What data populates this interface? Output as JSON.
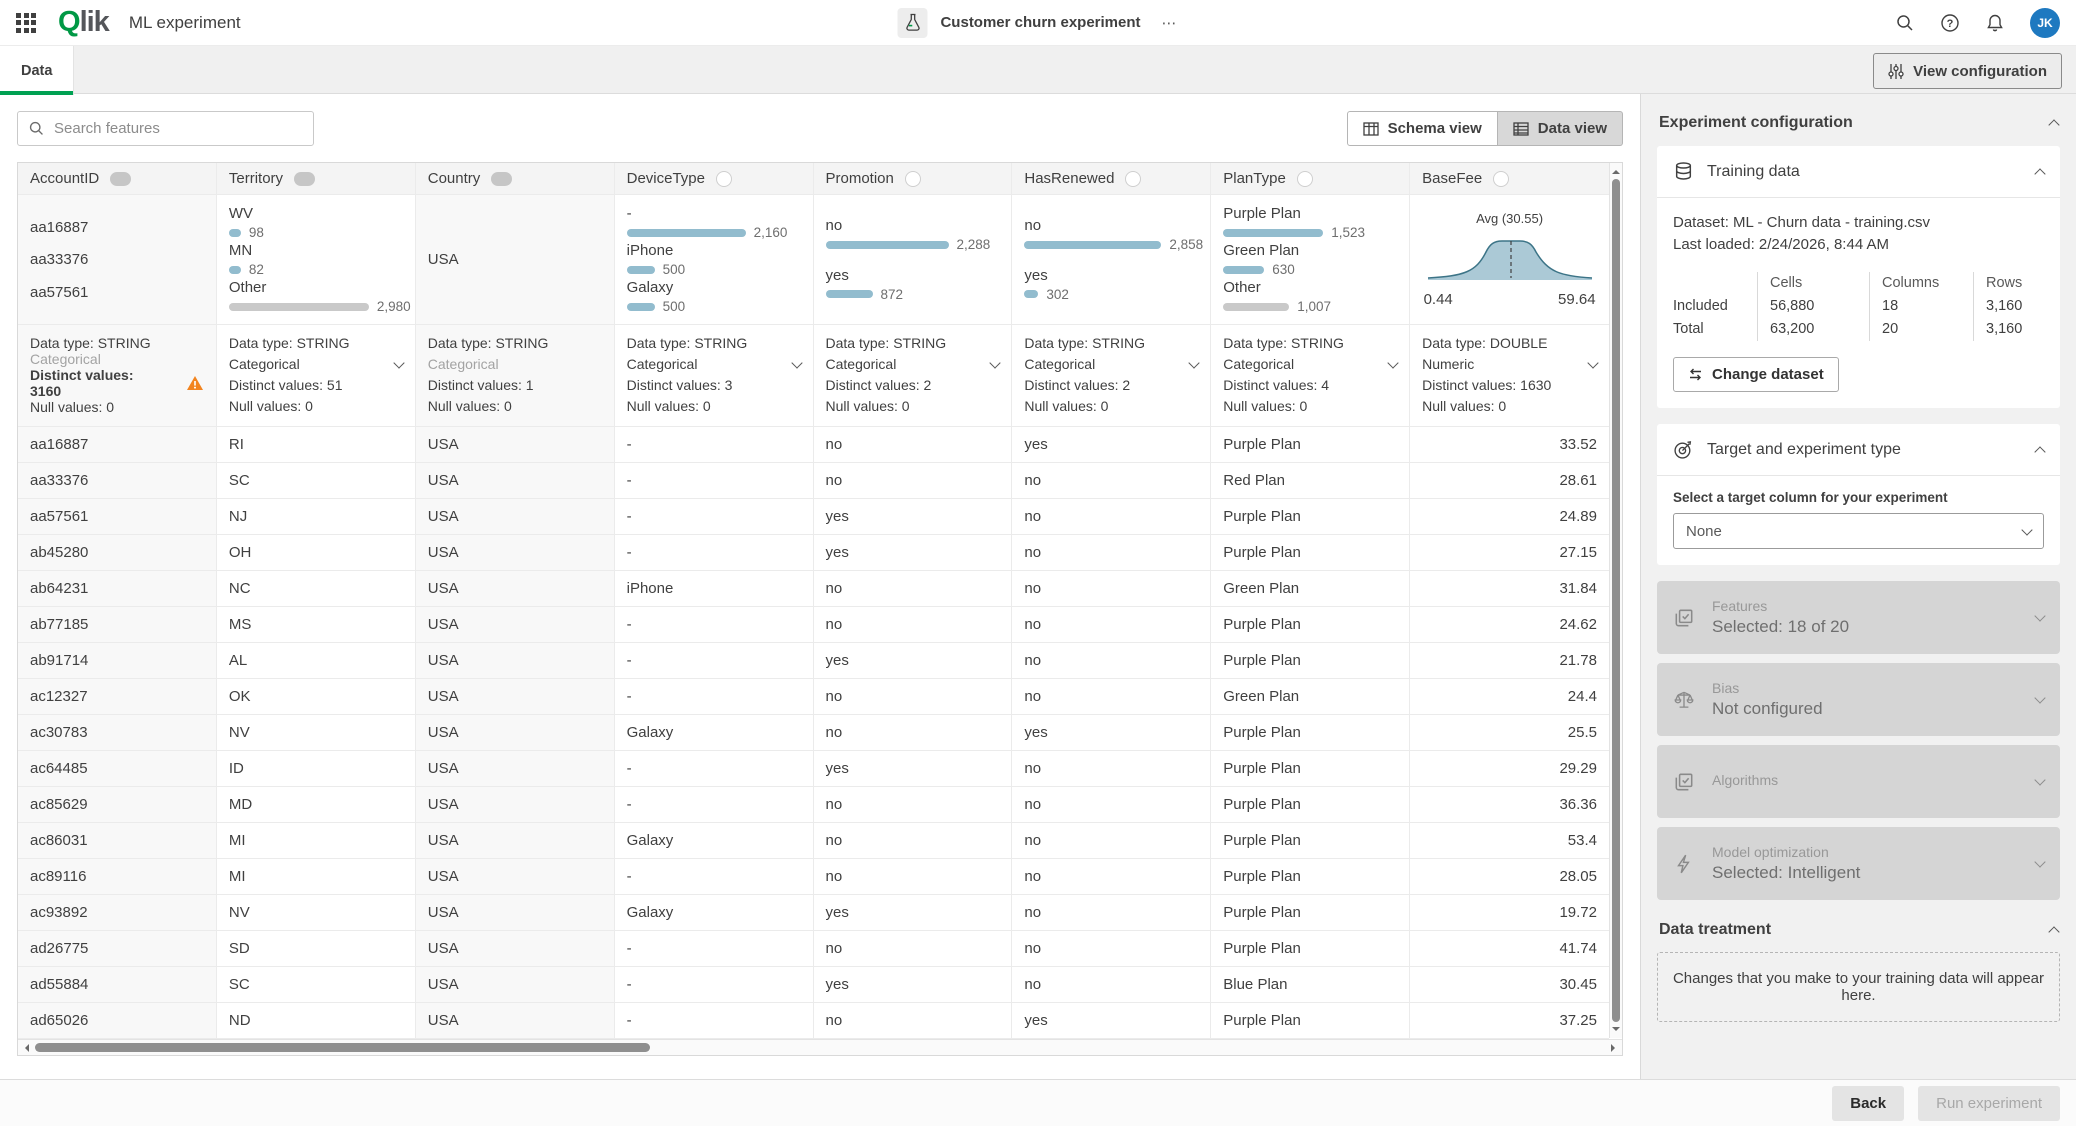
{
  "header": {
    "brand_q": "Q",
    "brand_rest": "lik",
    "app_title": "ML experiment",
    "experiment_name": "Customer churn experiment",
    "menu_dots": "⋯",
    "avatar": "JK"
  },
  "tabs": {
    "data": "Data"
  },
  "toolbar": {
    "view_configuration": "View configuration",
    "search_placeholder": "Search features",
    "schema_view": "Schema view",
    "data_view": "Data view"
  },
  "table": {
    "columns": [
      {
        "name": "AccountID",
        "toggle": "filled",
        "excluded": true,
        "summary": {
          "type": "samples",
          "items": [
            "aa16887",
            "aa33376",
            "aa57561"
          ]
        },
        "meta": {
          "data_type": "Data type: STRING",
          "kind": "Categorical",
          "kind_disabled": true,
          "dropdown": false,
          "distinct": "Distinct values: 3160",
          "distinct_bold": true,
          "warning": true,
          "nulls": "Null values: 0"
        }
      },
      {
        "name": "Territory",
        "toggle": "filled",
        "excluded": false,
        "summary": {
          "type": "bars",
          "items": [
            {
              "label": "WV",
              "value": 98,
              "display": "98",
              "muted": false
            },
            {
              "label": "MN",
              "value": 82,
              "display": "82",
              "muted": false
            },
            {
              "label": "Other",
              "value": 2980,
              "display": "2,980",
              "muted": true
            }
          ]
        },
        "meta": {
          "data_type": "Data type: STRING",
          "kind": "Categorical",
          "kind_disabled": false,
          "dropdown": true,
          "distinct": "Distinct values: 51",
          "distinct_bold": false,
          "warning": false,
          "nulls": "Null values: 0"
        }
      },
      {
        "name": "Country",
        "toggle": "filled",
        "excluded": true,
        "summary": {
          "type": "text",
          "items": [
            "USA"
          ]
        },
        "meta": {
          "data_type": "Data type: STRING",
          "kind": "Categorical",
          "kind_disabled": true,
          "dropdown": false,
          "distinct": "Distinct values: 1",
          "distinct_bold": false,
          "warning": false,
          "nulls": "Null values: 0"
        }
      },
      {
        "name": "DeviceType",
        "toggle": "outline",
        "excluded": false,
        "summary": {
          "type": "bars",
          "items": [
            {
              "label": "-",
              "value": 2160,
              "display": "2,160",
              "muted": false
            },
            {
              "label": "iPhone",
              "value": 500,
              "display": "500",
              "muted": false
            },
            {
              "label": "Galaxy",
              "value": 500,
              "display": "500",
              "muted": false
            }
          ]
        },
        "meta": {
          "data_type": "Data type: STRING",
          "kind": "Categorical",
          "kind_disabled": false,
          "dropdown": true,
          "distinct": "Distinct values: 3",
          "distinct_bold": false,
          "warning": false,
          "nulls": "Null values: 0"
        }
      },
      {
        "name": "Promotion",
        "toggle": "outline",
        "excluded": false,
        "summary": {
          "type": "bars",
          "items": [
            {
              "label": "no",
              "value": 2288,
              "display": "2,288",
              "muted": false
            },
            {
              "label": "yes",
              "value": 872,
              "display": "872",
              "muted": false
            }
          ]
        },
        "meta": {
          "data_type": "Data type: STRING",
          "kind": "Categorical",
          "kind_disabled": false,
          "dropdown": true,
          "distinct": "Distinct values: 2",
          "distinct_bold": false,
          "warning": false,
          "nulls": "Null values: 0"
        }
      },
      {
        "name": "HasRenewed",
        "toggle": "outline",
        "excluded": false,
        "summary": {
          "type": "bars",
          "items": [
            {
              "label": "no",
              "value": 2858,
              "display": "2,858",
              "muted": false
            },
            {
              "label": "yes",
              "value": 302,
              "display": "302",
              "muted": false
            }
          ]
        },
        "meta": {
          "data_type": "Data type: STRING",
          "kind": "Categorical",
          "kind_disabled": false,
          "dropdown": true,
          "distinct": "Distinct values: 2",
          "distinct_bold": false,
          "warning": false,
          "nulls": "Null values: 0"
        }
      },
      {
        "name": "PlanType",
        "toggle": "outline",
        "excluded": false,
        "summary": {
          "type": "bars",
          "items": [
            {
              "label": "Purple Plan",
              "value": 1523,
              "display": "1,523",
              "muted": false
            },
            {
              "label": "Green Plan",
              "value": 630,
              "display": "630",
              "muted": false
            },
            {
              "label": "Other",
              "value": 1007,
              "display": "1,007",
              "muted": true
            }
          ]
        },
        "meta": {
          "data_type": "Data type: STRING",
          "kind": "Categorical",
          "kind_disabled": false,
          "dropdown": true,
          "distinct": "Distinct values: 4",
          "distinct_bold": false,
          "warning": false,
          "nulls": "Null values: 0"
        }
      },
      {
        "name": "BaseFee",
        "toggle": "outline",
        "excluded": false,
        "summary": {
          "type": "dist",
          "avg_label": "Avg (30.55)",
          "min": "0.44",
          "max": "59.64"
        },
        "meta": {
          "data_type": "Data type: DOUBLE",
          "kind": "Numeric",
          "kind_disabled": false,
          "dropdown": true,
          "distinct": "Distinct values: 1630",
          "distinct_bold": false,
          "warning": false,
          "nulls": "Null values: 0"
        }
      }
    ],
    "rows": [
      [
        "aa16887",
        "RI",
        "USA",
        "-",
        "no",
        "yes",
        "Purple Plan",
        "33.52"
      ],
      [
        "aa33376",
        "SC",
        "USA",
        "-",
        "no",
        "no",
        "Red Plan",
        "28.61"
      ],
      [
        "aa57561",
        "NJ",
        "USA",
        "-",
        "yes",
        "no",
        "Purple Plan",
        "24.89"
      ],
      [
        "ab45280",
        "OH",
        "USA",
        "-",
        "yes",
        "no",
        "Purple Plan",
        "27.15"
      ],
      [
        "ab64231",
        "NC",
        "USA",
        "iPhone",
        "no",
        "no",
        "Green Plan",
        "31.84"
      ],
      [
        "ab77185",
        "MS",
        "USA",
        "-",
        "no",
        "no",
        "Purple Plan",
        "24.62"
      ],
      [
        "ab91714",
        "AL",
        "USA",
        "-",
        "yes",
        "no",
        "Purple Plan",
        "21.78"
      ],
      [
        "ac12327",
        "OK",
        "USA",
        "-",
        "no",
        "no",
        "Green Plan",
        "24.4"
      ],
      [
        "ac30783",
        "NV",
        "USA",
        "Galaxy",
        "no",
        "yes",
        "Purple Plan",
        "25.5"
      ],
      [
        "ac64485",
        "ID",
        "USA",
        "-",
        "yes",
        "no",
        "Purple Plan",
        "29.29"
      ],
      [
        "ac85629",
        "MD",
        "USA",
        "-",
        "no",
        "no",
        "Purple Plan",
        "36.36"
      ],
      [
        "ac86031",
        "MI",
        "USA",
        "Galaxy",
        "no",
        "no",
        "Purple Plan",
        "53.4"
      ],
      [
        "ac89116",
        "MI",
        "USA",
        "-",
        "no",
        "no",
        "Purple Plan",
        "28.05"
      ],
      [
        "ac93892",
        "NV",
        "USA",
        "Galaxy",
        "yes",
        "no",
        "Purple Plan",
        "19.72"
      ],
      [
        "ad26775",
        "SD",
        "USA",
        "-",
        "no",
        "no",
        "Purple Plan",
        "41.74"
      ],
      [
        "ad55884",
        "SC",
        "USA",
        "-",
        "yes",
        "no",
        "Blue Plan",
        "30.45"
      ],
      [
        "ad65026",
        "ND",
        "USA",
        "-",
        "no",
        "yes",
        "Purple Plan",
        "37.25"
      ]
    ]
  },
  "panel": {
    "title": "Experiment configuration",
    "training": {
      "title": "Training data",
      "dataset": "Dataset: ML - Churn data - training.csv",
      "last_loaded": "Last loaded: 2/24/2026, 8:44 AM",
      "stats": {
        "headers": [
          "Cells",
          "Columns",
          "Rows"
        ],
        "rows": [
          {
            "label": "Included",
            "values": [
              "56,880",
              "18",
              "3,160"
            ]
          },
          {
            "label": "Total",
            "values": [
              "63,200",
              "20",
              "3,160"
            ]
          }
        ]
      },
      "change_dataset": "Change dataset"
    },
    "target": {
      "title": "Target and experiment type",
      "label": "Select a target column for your experiment",
      "value": "None"
    },
    "sections": [
      {
        "title": "Features",
        "subtitle": "Selected: 18 of 20"
      },
      {
        "title": "Bias",
        "subtitle": "Not configured"
      },
      {
        "title": "Algorithms",
        "subtitle": ""
      },
      {
        "title": "Model optimization",
        "subtitle": "Selected: Intelligent"
      }
    ],
    "data_treatment": {
      "title": "Data treatment",
      "message": "Changes that you make to your training data will appear here."
    }
  },
  "footer": {
    "back": "Back",
    "run": "Run experiment"
  },
  "colors": {
    "accent_green": "#009845",
    "tab_underline_green": "#00a152",
    "bar_blue": "#92bcce",
    "bar_muted": "#c9c9c9",
    "warning_orange": "#f2841f",
    "avatar_blue": "#1e79c0",
    "distribution_fill": "#abc9d6",
    "distribution_stroke": "#3c7487"
  }
}
